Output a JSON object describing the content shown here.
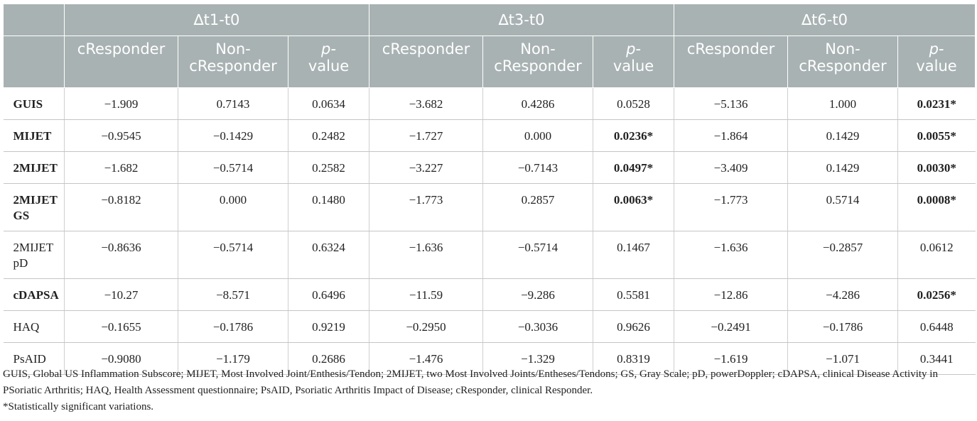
{
  "groups": [
    "∆t1-t0",
    "∆t3-t0",
    "∆t6-t0"
  ],
  "subheaders": {
    "responder": "cResponder",
    "non_responder": "Non-cResponder",
    "p": "p-",
    "p_value": "value"
  },
  "rows": [
    {
      "label": "GUIS",
      "bold_label": true,
      "cells": [
        {
          "v": "−1.909"
        },
        {
          "v": "0.7143"
        },
        {
          "v": "0.0634"
        },
        {
          "v": "−3.682"
        },
        {
          "v": "0.4286"
        },
        {
          "v": "0.0528"
        },
        {
          "v": "−5.136"
        },
        {
          "v": "1.000"
        },
        {
          "v": "0.0231*",
          "bold": true
        }
      ]
    },
    {
      "label": "MIJET",
      "bold_label": true,
      "cells": [
        {
          "v": "−0.9545"
        },
        {
          "v": "−0.1429"
        },
        {
          "v": "0.2482"
        },
        {
          "v": "−1.727"
        },
        {
          "v": "0.000"
        },
        {
          "v": "0.0236*",
          "bold": true
        },
        {
          "v": "−1.864"
        },
        {
          "v": "0.1429"
        },
        {
          "v": "0.0055*",
          "bold": true
        }
      ]
    },
    {
      "label": "2MIJET",
      "bold_label": true,
      "cells": [
        {
          "v": "−1.682"
        },
        {
          "v": "−0.5714"
        },
        {
          "v": "0.2582"
        },
        {
          "v": "−3.227"
        },
        {
          "v": "−0.7143"
        },
        {
          "v": "0.0497*",
          "bold": true
        },
        {
          "v": "−3.409"
        },
        {
          "v": "0.1429"
        },
        {
          "v": "0.0030*",
          "bold": true
        }
      ]
    },
    {
      "label": "2MIJET GS",
      "bold_label": true,
      "tall": true,
      "cells": [
        {
          "v": "−0.8182"
        },
        {
          "v": "0.000"
        },
        {
          "v": "0.1480"
        },
        {
          "v": "−1.773"
        },
        {
          "v": "0.2857"
        },
        {
          "v": "0.0063*",
          "bold": true
        },
        {
          "v": "−1.773"
        },
        {
          "v": "0.5714"
        },
        {
          "v": "0.0008*",
          "bold": true
        }
      ]
    },
    {
      "label": "2MIJET pD",
      "bold_label": false,
      "tall": true,
      "cells": [
        {
          "v": "−0.8636"
        },
        {
          "v": "−0.5714"
        },
        {
          "v": "0.6324"
        },
        {
          "v": "−1.636"
        },
        {
          "v": "−0.5714"
        },
        {
          "v": "0.1467"
        },
        {
          "v": "−1.636"
        },
        {
          "v": "−0.2857"
        },
        {
          "v": "0.0612"
        }
      ]
    },
    {
      "label": "cDAPSA",
      "bold_label": true,
      "cells": [
        {
          "v": "−10.27"
        },
        {
          "v": "−8.571"
        },
        {
          "v": "0.6496"
        },
        {
          "v": "−11.59"
        },
        {
          "v": "−9.286"
        },
        {
          "v": "0.5581"
        },
        {
          "v": "−12.86"
        },
        {
          "v": "−4.286"
        },
        {
          "v": "0.0256*",
          "bold": true
        }
      ]
    },
    {
      "label": "HAQ",
      "bold_label": false,
      "cells": [
        {
          "v": "−0.1655"
        },
        {
          "v": "−0.1786"
        },
        {
          "v": "0.9219"
        },
        {
          "v": "−0.2950"
        },
        {
          "v": "−0.3036"
        },
        {
          "v": "0.9626"
        },
        {
          "v": "−0.2491"
        },
        {
          "v": "−0.1786"
        },
        {
          "v": "0.6448"
        }
      ]
    },
    {
      "label": "PsAID",
      "bold_label": false,
      "cells": [
        {
          "v": "−0.9080"
        },
        {
          "v": "−1.179"
        },
        {
          "v": "0.2686"
        },
        {
          "v": "−1.476"
        },
        {
          "v": "−1.329"
        },
        {
          "v": "0.8319"
        },
        {
          "v": "−1.619"
        },
        {
          "v": "−1.071"
        },
        {
          "v": "0.3441"
        }
      ]
    }
  ],
  "footnotes": [
    "GUIS, Global US Inflammation Subscore; MIJET, Most Involved Joint/Enthesis/Tendon; 2MIJET, two Most Involved Joints/Entheses/Tendons; GS, Gray Scale; pD, powerDoppler; cDAPSA, clinical Disease Activity in PSoriatic Arthritis; HAQ, Health Assessment questionnaire; PsAID, Psoriatic Arthritis Impact of Disease; cResponder, clinical Responder.",
    "*Statistically significant variations."
  ]
}
